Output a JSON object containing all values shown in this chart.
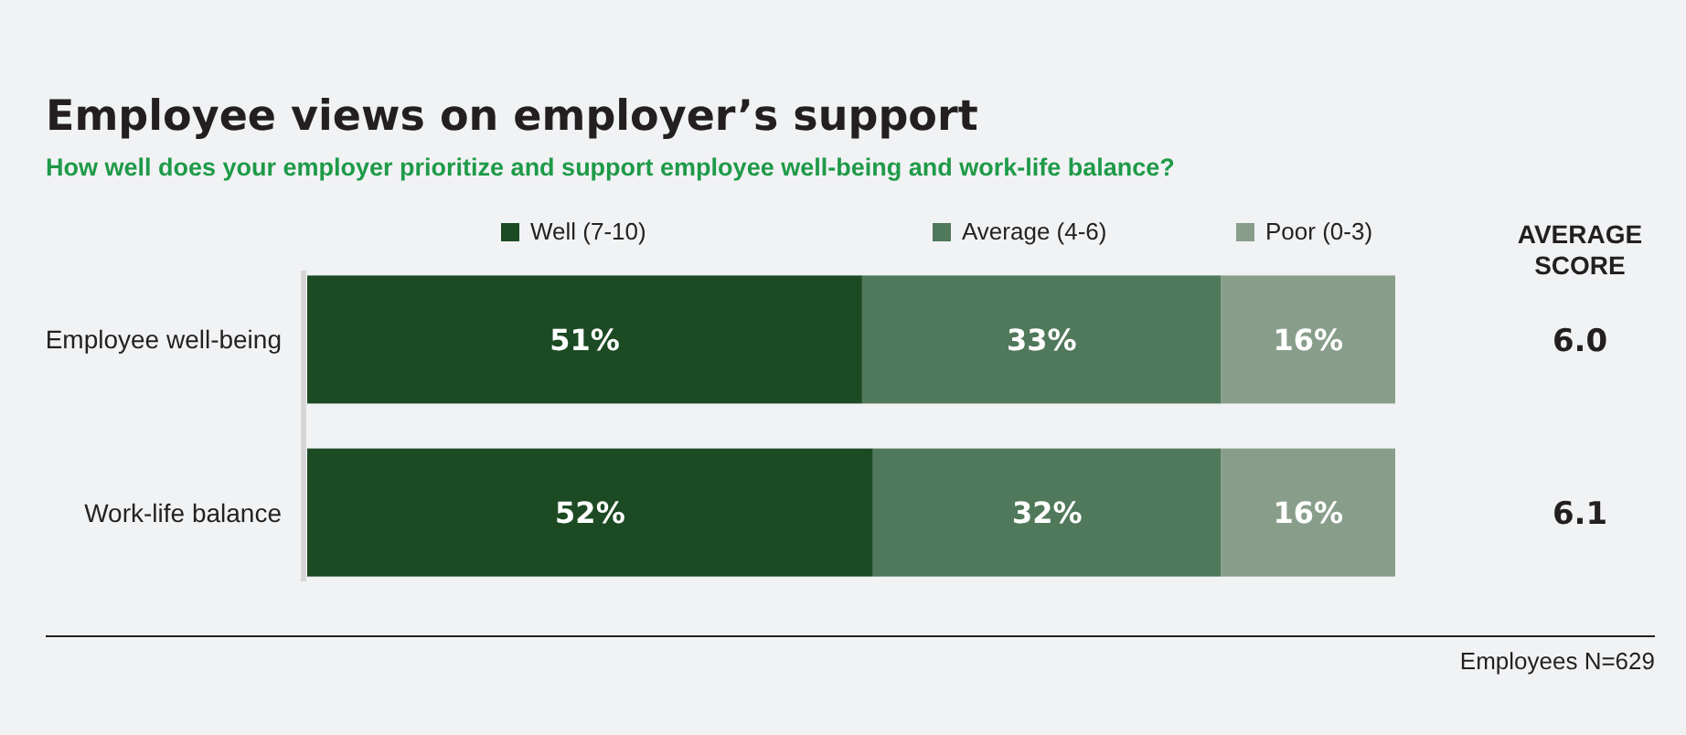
{
  "chart_data": {
    "type": "bar",
    "orientation": "horizontal",
    "stacked": true,
    "title": "Employee views on employer’s support",
    "subtitle": "How well does your employer prioritize and support employee well-being and work-life balance?",
    "categories": [
      "Employee well-being",
      "Work-life balance"
    ],
    "xlim": [
      0,
      100
    ],
    "tick_labels": "y",
    "legend": "top",
    "series": [
      {
        "name": "Well (7-10)",
        "color": "#1c4a23",
        "values": [
          51,
          52
        ],
        "value_labels": [
          "51%",
          "52%"
        ]
      },
      {
        "name": "Average (4-6)",
        "color": "#50785a",
        "values": [
          33,
          32
        ],
        "value_labels": [
          "33%",
          "32%"
        ]
      },
      {
        "name": "Poor (0-3)",
        "color": "#889e8b",
        "values": [
          16,
          16
        ],
        "value_labels": [
          "16%",
          "16%"
        ]
      }
    ],
    "annotations": [
      "AVERAGE SCORE",
      "6.0",
      "6.1",
      "Employees N=629"
    ]
  }
}
